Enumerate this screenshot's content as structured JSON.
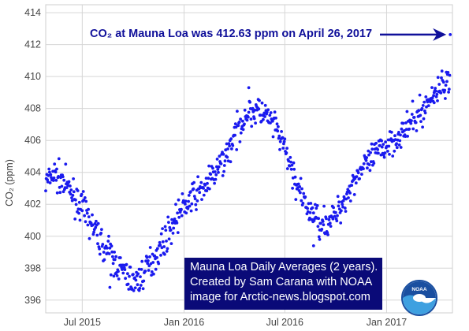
{
  "chart_data": {
    "type": "scatter",
    "title": "",
    "ylabel": "CO₂ (ppm)",
    "xlabel": "",
    "x_domain": [
      "2015-04-26",
      "2017-04-30"
    ],
    "ylim": [
      395.2,
      414.5
    ],
    "yticks": [
      396,
      398,
      400,
      402,
      404,
      406,
      408,
      410,
      412,
      414
    ],
    "xticks": [
      {
        "date": "2015-07-01",
        "label": "Jul 2015"
      },
      {
        "date": "2016-01-01",
        "label": "Jan 2016"
      },
      {
        "date": "2016-07-01",
        "label": "Jul 2016"
      },
      {
        "date": "2017-01-01",
        "label": "Jan 2017"
      }
    ],
    "grid": true,
    "marker_color": "#1a1aee",
    "series": [
      {
        "anchors": [
          [
            "2015-04-26",
            403.3
          ],
          [
            "2015-05-10",
            403.9
          ],
          [
            "2015-05-25",
            403.5
          ],
          [
            "2015-06-10",
            402.8
          ],
          [
            "2015-07-01",
            401.8
          ],
          [
            "2015-07-20",
            400.6
          ],
          [
            "2015-08-10",
            399.3
          ],
          [
            "2015-09-01",
            398.3
          ],
          [
            "2015-09-20",
            397.5
          ],
          [
            "2015-10-05",
            397.1
          ],
          [
            "2015-10-20",
            397.7
          ],
          [
            "2015-11-10",
            398.8
          ],
          [
            "2015-12-01",
            400.0
          ],
          [
            "2015-12-20",
            401.3
          ],
          [
            "2016-01-10",
            402.2
          ],
          [
            "2016-02-01",
            402.9
          ],
          [
            "2016-02-20",
            403.6
          ],
          [
            "2016-03-10",
            404.6
          ],
          [
            "2016-04-01",
            406.2
          ],
          [
            "2016-04-20",
            407.6
          ],
          [
            "2016-05-10",
            407.9
          ],
          [
            "2016-05-25",
            407.6
          ],
          [
            "2016-06-10",
            407.0
          ],
          [
            "2016-06-25",
            406.0
          ],
          [
            "2016-07-15",
            404.0
          ],
          [
            "2016-08-05",
            402.0
          ],
          [
            "2016-08-25",
            401.2
          ],
          [
            "2016-09-15",
            400.8
          ],
          [
            "2016-10-01",
            401.3
          ],
          [
            "2016-10-20",
            402.5
          ],
          [
            "2016-11-10",
            404.0
          ],
          [
            "2016-12-01",
            404.6
          ],
          [
            "2016-12-20",
            405.4
          ],
          [
            "2017-01-10",
            406.0
          ],
          [
            "2017-02-01",
            406.5
          ],
          [
            "2017-02-20",
            407.3
          ],
          [
            "2017-03-10",
            408.0
          ],
          [
            "2017-03-25",
            408.8
          ],
          [
            "2017-04-10",
            409.5
          ],
          [
            "2017-04-25",
            409.5
          ]
        ],
        "outliers": [
          [
            "2015-08-20",
            396.8
          ],
          [
            "2015-08-27",
            397.5
          ],
          [
            "2015-10-12",
            396.6
          ],
          [
            "2016-04-27",
            409.3
          ],
          [
            "2016-08-22",
            399.4
          ],
          [
            "2016-09-02",
            399.8
          ],
          [
            "2017-03-28",
            409.0
          ],
          [
            "2017-04-26",
            412.63
          ]
        ],
        "spread": 0.45,
        "points_per_day": 1
      }
    ],
    "annotation": {
      "text": "CO₂ at Mauna Loa was 412.63 ppm on April 26, 2017",
      "date": "2017-04-26",
      "value": 412.63
    },
    "info_box": {
      "lines": [
        "Mauna Loa Daily Averages (2 years).",
        "Created by Sam Carana with NOAA",
        "image for Arctic-news.blogspot.com"
      ]
    },
    "logo": {
      "text": "NOAA",
      "icon": "noaa-logo-icon"
    }
  }
}
